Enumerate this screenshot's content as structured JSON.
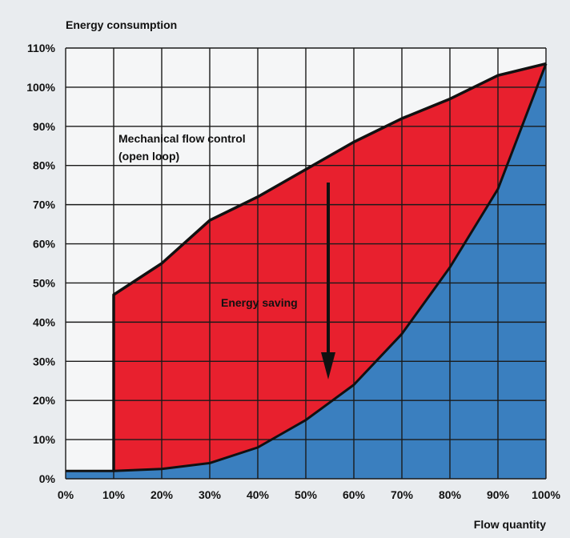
{
  "chart_data": {
    "type": "area",
    "y_axis_title": "Energy consumption",
    "x_axis_title": "Flow quantity",
    "x_ticks": [
      "0%",
      "10%",
      "20%",
      "30%",
      "40%",
      "50%",
      "60%",
      "70%",
      "80%",
      "90%",
      "100%"
    ],
    "y_ticks": [
      "0%",
      "10%",
      "20%",
      "30%",
      "40%",
      "50%",
      "60%",
      "70%",
      "80%",
      "90%",
      "100%",
      "110%"
    ],
    "xlim": [
      0,
      100
    ],
    "ylim": [
      0,
      110
    ],
    "grid": true,
    "series": [
      {
        "name": "Mechanical flow control (open loop)",
        "color": "#e8202e",
        "x": [
          10,
          20,
          30,
          40,
          50,
          60,
          70,
          80,
          90,
          100
        ],
        "y": [
          47,
          55,
          66,
          72,
          79,
          86,
          92,
          97,
          103,
          106
        ]
      },
      {
        "color": "#3a7fbf",
        "x": [
          0,
          10,
          20,
          30,
          40,
          50,
          60,
          70,
          80,
          90,
          100
        ],
        "y": [
          2,
          2,
          2.5,
          4,
          8,
          15,
          24,
          37,
          54,
          74,
          106
        ]
      }
    ],
    "annotations": [
      {
        "text_lines": [
          "Mechanical flow control",
          "(open loop)"
        ]
      },
      {
        "text": "Energy saving",
        "arrow": "down"
      }
    ]
  }
}
